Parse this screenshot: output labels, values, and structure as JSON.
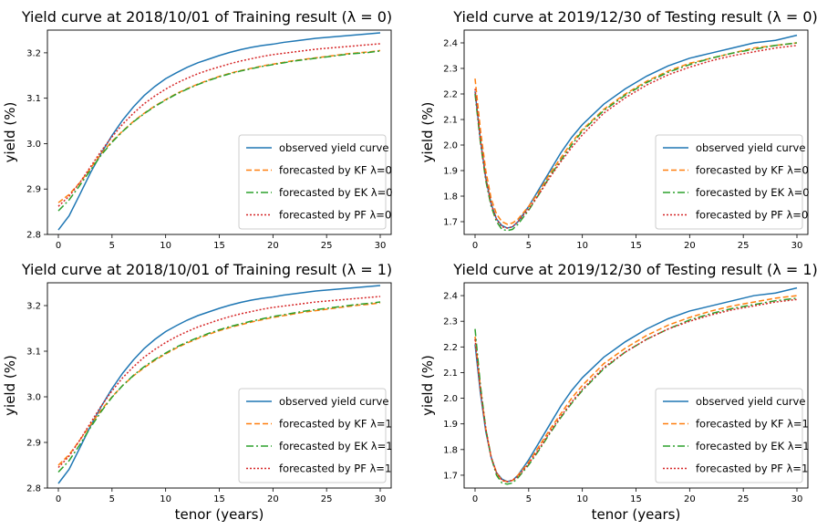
{
  "figure": {
    "xlabel": "tenor (years)",
    "ylabel": "yield (%)"
  },
  "chart_data": [
    {
      "type": "line",
      "title": "Yield curve at 2018/10/01 of Training result (λ = 0)",
      "xlabel": "",
      "ylabel": "yield (%)",
      "xlim": [
        0,
        30
      ],
      "ylim": [
        2.8,
        3.25
      ],
      "xticks": [
        0,
        5,
        10,
        15,
        20,
        25,
        30
      ],
      "yticks": [
        2.8,
        2.9,
        3.0,
        3.1,
        3.2
      ],
      "legend_position": "lower-right",
      "x": [
        0,
        1,
        2,
        3,
        4,
        5,
        6,
        7,
        8,
        9,
        10,
        11,
        12,
        13,
        14,
        15,
        16,
        17,
        18,
        19,
        20,
        21,
        22,
        23,
        24,
        25,
        26,
        27,
        28,
        29,
        30
      ],
      "series": [
        {
          "name": "observed yield curve",
          "color": "#1f77b4",
          "style": "solid",
          "values": [
            2.81,
            2.841,
            2.888,
            2.936,
            2.979,
            3.018,
            3.052,
            3.081,
            3.106,
            3.126,
            3.143,
            3.156,
            3.168,
            3.178,
            3.186,
            3.194,
            3.201,
            3.207,
            3.212,
            3.216,
            3.219,
            3.223,
            3.226,
            3.229,
            3.232,
            3.234,
            3.236,
            3.238,
            3.24,
            3.242,
            3.244
          ]
        },
        {
          "name": "forecasted by KF λ=0",
          "color": "#ff7f0e",
          "style": "dashed",
          "values": [
            2.87,
            2.888,
            2.914,
            2.946,
            2.978,
            3.005,
            3.028,
            3.049,
            3.067,
            3.083,
            3.097,
            3.11,
            3.121,
            3.131,
            3.14,
            3.148,
            3.155,
            3.161,
            3.166,
            3.171,
            3.175,
            3.179,
            3.183,
            3.186,
            3.189,
            3.192,
            3.195,
            3.198,
            3.2,
            3.202,
            3.205
          ]
        },
        {
          "name": "forecasted by EK λ=0",
          "color": "#2ca02c",
          "style": "dashdot",
          "values": [
            2.852,
            2.876,
            2.908,
            2.942,
            2.975,
            3.003,
            3.027,
            3.048,
            3.066,
            3.082,
            3.096,
            3.109,
            3.12,
            3.13,
            3.139,
            3.147,
            3.154,
            3.16,
            3.165,
            3.17,
            3.174,
            3.178,
            3.182,
            3.185,
            3.188,
            3.191,
            3.194,
            3.197,
            3.199,
            3.201,
            3.204
          ]
        },
        {
          "name": "forecasted by PF λ=0",
          "color": "#d62728",
          "style": "dotted",
          "values": [
            2.862,
            2.884,
            2.914,
            2.949,
            2.984,
            3.015,
            3.043,
            3.067,
            3.088,
            3.105,
            3.12,
            3.133,
            3.144,
            3.154,
            3.162,
            3.169,
            3.176,
            3.182,
            3.187,
            3.192,
            3.196,
            3.199,
            3.202,
            3.205,
            3.208,
            3.21,
            3.212,
            3.214,
            3.216,
            3.218,
            3.22
          ]
        }
      ]
    },
    {
      "type": "line",
      "title": "Yield curve at 2019/12/30 of Testing result (λ = 0)",
      "xlabel": "",
      "ylabel": "yield (%)",
      "xlim": [
        0,
        30
      ],
      "ylim": [
        1.65,
        2.45
      ],
      "xticks": [
        0,
        5,
        10,
        15,
        20,
        25,
        30
      ],
      "yticks": [
        1.7,
        1.8,
        1.9,
        2.0,
        2.1,
        2.2,
        2.3,
        2.4
      ],
      "legend_position": "lower-right",
      "x": [
        0,
        0.5,
        1,
        1.5,
        2,
        2.5,
        3,
        3.5,
        4,
        5,
        6,
        7,
        8,
        9,
        10,
        12,
        14,
        16,
        18,
        20,
        22,
        24,
        26,
        28,
        30
      ],
      "series": [
        {
          "name": "observed yield curve",
          "color": "#1f77b4",
          "style": "solid",
          "values": [
            2.21,
            2.02,
            1.87,
            1.77,
            1.71,
            1.685,
            1.675,
            1.68,
            1.7,
            1.76,
            1.83,
            1.9,
            1.97,
            2.03,
            2.08,
            2.16,
            2.22,
            2.27,
            2.31,
            2.34,
            2.36,
            2.38,
            2.4,
            2.41,
            2.43
          ]
        },
        {
          "name": "forecasted by KF λ=0",
          "color": "#ff7f0e",
          "style": "dashed",
          "values": [
            2.26,
            2.06,
            1.9,
            1.79,
            1.73,
            1.7,
            1.69,
            1.695,
            1.71,
            1.76,
            1.82,
            1.89,
            1.95,
            2.01,
            2.06,
            2.14,
            2.2,
            2.25,
            2.29,
            2.32,
            2.34,
            2.36,
            2.38,
            2.39,
            2.4
          ]
        },
        {
          "name": "forecasted by EK λ=0",
          "color": "#2ca02c",
          "style": "dashdot",
          "values": [
            2.2,
            2.01,
            1.86,
            1.76,
            1.7,
            1.67,
            1.665,
            1.67,
            1.69,
            1.745,
            1.81,
            1.88,
            1.94,
            2.0,
            2.055,
            2.135,
            2.195,
            2.245,
            2.285,
            2.315,
            2.34,
            2.36,
            2.375,
            2.39,
            2.4
          ]
        },
        {
          "name": "forecasted by PF λ=0",
          "color": "#d62728",
          "style": "dotted",
          "values": [
            2.22,
            2.02,
            1.87,
            1.77,
            1.71,
            1.68,
            1.675,
            1.68,
            1.7,
            1.75,
            1.81,
            1.875,
            1.935,
            1.99,
            2.04,
            2.125,
            2.185,
            2.235,
            2.275,
            2.305,
            2.33,
            2.35,
            2.365,
            2.38,
            2.39
          ]
        }
      ]
    },
    {
      "type": "line",
      "title": "Yield curve at 2018/10/01 of Training result (λ = 1)",
      "xlabel": "tenor (years)",
      "ylabel": "yield (%)",
      "xlim": [
        0,
        30
      ],
      "ylim": [
        2.8,
        3.25
      ],
      "xticks": [
        0,
        5,
        10,
        15,
        20,
        25,
        30
      ],
      "yticks": [
        2.8,
        2.9,
        3.0,
        3.1,
        3.2
      ],
      "legend_position": "lower-right",
      "x": [
        0,
        1,
        2,
        3,
        4,
        5,
        6,
        7,
        8,
        9,
        10,
        11,
        12,
        13,
        14,
        15,
        16,
        17,
        18,
        19,
        20,
        21,
        22,
        23,
        24,
        25,
        26,
        27,
        28,
        29,
        30
      ],
      "series": [
        {
          "name": "observed yield curve",
          "color": "#1f77b4",
          "style": "solid",
          "values": [
            2.81,
            2.841,
            2.888,
            2.936,
            2.979,
            3.018,
            3.052,
            3.081,
            3.106,
            3.126,
            3.143,
            3.156,
            3.168,
            3.178,
            3.186,
            3.194,
            3.201,
            3.207,
            3.212,
            3.216,
            3.219,
            3.223,
            3.226,
            3.229,
            3.232,
            3.234,
            3.236,
            3.238,
            3.24,
            3.242,
            3.244
          ]
        },
        {
          "name": "forecasted by KF λ=1",
          "color": "#ff7f0e",
          "style": "dashed",
          "values": [
            2.85,
            2.873,
            2.905,
            2.939,
            2.971,
            3.0,
            3.025,
            3.046,
            3.064,
            3.08,
            3.094,
            3.107,
            3.118,
            3.128,
            3.137,
            3.145,
            3.152,
            3.158,
            3.164,
            3.169,
            3.174,
            3.178,
            3.182,
            3.186,
            3.189,
            3.192,
            3.195,
            3.198,
            3.201,
            3.203,
            3.206
          ]
        },
        {
          "name": "forecasted by EK λ=1",
          "color": "#2ca02c",
          "style": "dashdot",
          "values": [
            2.835,
            2.86,
            2.895,
            2.933,
            2.968,
            2.999,
            3.025,
            3.047,
            3.066,
            3.082,
            3.096,
            3.109,
            3.12,
            3.13,
            3.139,
            3.147,
            3.154,
            3.16,
            3.166,
            3.171,
            3.176,
            3.18,
            3.184,
            3.188,
            3.191,
            3.194,
            3.197,
            3.2,
            3.203,
            3.205,
            3.208
          ]
        },
        {
          "name": "forecasted by PF λ=1",
          "color": "#d62728",
          "style": "dotted",
          "values": [
            2.845,
            2.87,
            2.905,
            2.943,
            2.98,
            3.013,
            3.042,
            3.066,
            3.087,
            3.104,
            3.119,
            3.132,
            3.143,
            3.153,
            3.161,
            3.169,
            3.176,
            3.182,
            3.187,
            3.192,
            3.196,
            3.199,
            3.202,
            3.205,
            3.208,
            3.21,
            3.212,
            3.214,
            3.216,
            3.218,
            3.22
          ]
        }
      ]
    },
    {
      "type": "line",
      "title": "Yield curve at 2019/12/30 of Testing result (λ = 1)",
      "xlabel": "tenor (years)",
      "ylabel": "yield (%)",
      "xlim": [
        0,
        30
      ],
      "ylim": [
        1.65,
        2.45
      ],
      "xticks": [
        0,
        5,
        10,
        15,
        20,
        25,
        30
      ],
      "yticks": [
        1.7,
        1.8,
        1.9,
        2.0,
        2.1,
        2.2,
        2.3,
        2.4
      ],
      "legend_position": "lower-right",
      "x": [
        0,
        0.5,
        1,
        1.5,
        2,
        2.5,
        3,
        3.5,
        4,
        5,
        6,
        7,
        8,
        9,
        10,
        12,
        14,
        16,
        18,
        20,
        22,
        24,
        26,
        28,
        30
      ],
      "series": [
        {
          "name": "observed yield curve",
          "color": "#1f77b4",
          "style": "solid",
          "values": [
            2.21,
            2.02,
            1.87,
            1.77,
            1.71,
            1.685,
            1.675,
            1.68,
            1.7,
            1.76,
            1.83,
            1.9,
            1.97,
            2.03,
            2.08,
            2.16,
            2.22,
            2.27,
            2.31,
            2.34,
            2.36,
            2.38,
            2.4,
            2.41,
            2.43
          ]
        },
        {
          "name": "forecasted by KF λ=1",
          "color": "#ff7f0e",
          "style": "dashed",
          "values": [
            2.24,
            2.04,
            1.88,
            1.77,
            1.71,
            1.68,
            1.675,
            1.68,
            1.7,
            1.75,
            1.815,
            1.88,
            1.94,
            2.0,
            2.05,
            2.135,
            2.195,
            2.245,
            2.285,
            2.315,
            2.34,
            2.36,
            2.375,
            2.39,
            2.4
          ]
        },
        {
          "name": "forecasted by EK λ=1",
          "color": "#2ca02c",
          "style": "dashdot",
          "values": [
            2.27,
            2.05,
            1.88,
            1.77,
            1.7,
            1.67,
            1.665,
            1.67,
            1.69,
            1.74,
            1.8,
            1.865,
            1.925,
            1.98,
            2.03,
            2.115,
            2.18,
            2.23,
            2.27,
            2.305,
            2.33,
            2.35,
            2.365,
            2.38,
            2.39
          ]
        },
        {
          "name": "forecasted by PF λ=1",
          "color": "#d62728",
          "style": "dotted",
          "values": [
            2.23,
            2.03,
            1.88,
            1.77,
            1.71,
            1.68,
            1.675,
            1.68,
            1.695,
            1.745,
            1.805,
            1.87,
            1.93,
            1.985,
            2.035,
            2.12,
            2.18,
            2.23,
            2.27,
            2.3,
            2.325,
            2.345,
            2.36,
            2.375,
            2.385
          ]
        }
      ]
    }
  ]
}
